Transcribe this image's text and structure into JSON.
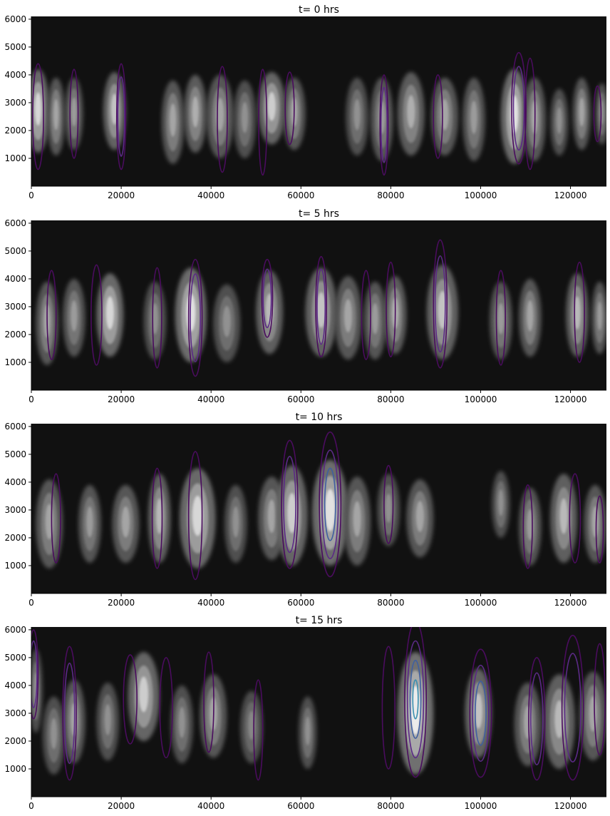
{
  "chart_data": [
    {
      "type": "heatmap",
      "title": "t=  0 hrs",
      "xlim": [
        0,
        128000
      ],
      "ylim": [
        0,
        6100
      ],
      "xticks": [
        0,
        20000,
        40000,
        60000,
        80000,
        100000,
        120000
      ],
      "yticks": [
        1000,
        2000,
        3000,
        4000,
        5000,
        6000
      ],
      "xtick_labels": [
        "0",
        "20000",
        "40000",
        "60000",
        "80000",
        "100000",
        "120000"
      ],
      "ytick_labels": [
        "1000",
        "2000",
        "3000",
        "4000",
        "5000",
        "6000"
      ],
      "background": "#111111",
      "clusters": [
        {
          "x": 1500,
          "y": 2700,
          "w": 2500,
          "h": 1500,
          "i": 0.85
        },
        {
          "x": 5500,
          "y": 2500,
          "w": 2000,
          "h": 1400,
          "i": 0.6
        },
        {
          "x": 9500,
          "y": 2600,
          "w": 2000,
          "h": 1300,
          "i": 0.55
        },
        {
          "x": 18500,
          "y": 2700,
          "w": 2500,
          "h": 1400,
          "i": 0.75
        },
        {
          "x": 31500,
          "y": 2300,
          "w": 2500,
          "h": 1500,
          "i": 0.6
        },
        {
          "x": 36500,
          "y": 2600,
          "w": 2500,
          "h": 1400,
          "i": 0.65
        },
        {
          "x": 42000,
          "y": 2500,
          "w": 3000,
          "h": 1500,
          "i": 0.6
        },
        {
          "x": 47500,
          "y": 2400,
          "w": 2500,
          "h": 1400,
          "i": 0.5
        },
        {
          "x": 53500,
          "y": 2800,
          "w": 3000,
          "h": 1300,
          "i": 0.8
        },
        {
          "x": 58500,
          "y": 2600,
          "w": 2500,
          "h": 1300,
          "i": 0.6
        },
        {
          "x": 72500,
          "y": 2500,
          "w": 2500,
          "h": 1400,
          "i": 0.5
        },
        {
          "x": 78000,
          "y": 2400,
          "w": 2500,
          "h": 1500,
          "i": 0.55
        },
        {
          "x": 84500,
          "y": 2600,
          "w": 3000,
          "h": 1500,
          "i": 0.65
        },
        {
          "x": 92000,
          "y": 2500,
          "w": 3000,
          "h": 1400,
          "i": 0.6
        },
        {
          "x": 98500,
          "y": 2400,
          "w": 2500,
          "h": 1500,
          "i": 0.55
        },
        {
          "x": 107500,
          "y": 2500,
          "w": 3000,
          "h": 1700,
          "i": 0.9
        },
        {
          "x": 112000,
          "y": 2400,
          "w": 2500,
          "h": 1500,
          "i": 0.6
        },
        {
          "x": 117500,
          "y": 2300,
          "w": 2000,
          "h": 1200,
          "i": 0.5
        },
        {
          "x": 122500,
          "y": 2600,
          "w": 2000,
          "h": 1300,
          "i": 0.6
        },
        {
          "x": 127000,
          "y": 2600,
          "w": 1500,
          "h": 1100,
          "i": 0.5
        }
      ],
      "contours": [
        {
          "x": 1500,
          "y": 2500,
          "w": 1200,
          "h": 1900,
          "level": 1
        },
        {
          "x": 9500,
          "y": 2600,
          "w": 900,
          "h": 1600,
          "level": 1
        },
        {
          "x": 20000,
          "y": 2500,
          "w": 1000,
          "h": 1900,
          "level": 2
        },
        {
          "x": 42500,
          "y": 2400,
          "w": 1100,
          "h": 1900,
          "level": 1
        },
        {
          "x": 51500,
          "y": 2300,
          "w": 900,
          "h": 1900,
          "level": 1
        },
        {
          "x": 57500,
          "y": 2800,
          "w": 1000,
          "h": 1300,
          "level": 1
        },
        {
          "x": 78500,
          "y": 2200,
          "w": 900,
          "h": 1800,
          "level": 2
        },
        {
          "x": 90500,
          "y": 2500,
          "w": 1000,
          "h": 1500,
          "level": 1
        },
        {
          "x": 108500,
          "y": 2800,
          "w": 1600,
          "h": 2000,
          "level": 2
        },
        {
          "x": 111000,
          "y": 2600,
          "w": 1100,
          "h": 2000,
          "level": 1
        },
        {
          "x": 126000,
          "y": 2600,
          "w": 800,
          "h": 1000,
          "level": 1
        }
      ]
    },
    {
      "type": "heatmap",
      "title": "t=  5 hrs",
      "xlim": [
        0,
        128000
      ],
      "ylim": [
        0,
        6100
      ],
      "xticks": [
        0,
        20000,
        40000,
        60000,
        80000,
        100000,
        120000
      ],
      "yticks": [
        1000,
        2000,
        3000,
        4000,
        5000,
        6000
      ],
      "xtick_labels": [
        "0",
        "20000",
        "40000",
        "60000",
        "80000",
        "100000",
        "120000"
      ],
      "ytick_labels": [
        "1000",
        "2000",
        "3000",
        "4000",
        "5000",
        "6000"
      ],
      "background": "#111111",
      "clusters": [
        {
          "x": 3500,
          "y": 2400,
          "w": 2500,
          "h": 1500,
          "i": 0.6
        },
        {
          "x": 9500,
          "y": 2600,
          "w": 2500,
          "h": 1400,
          "i": 0.55
        },
        {
          "x": 17500,
          "y": 2700,
          "w": 3000,
          "h": 1500,
          "i": 0.85
        },
        {
          "x": 27500,
          "y": 2500,
          "w": 2500,
          "h": 1400,
          "i": 0.5
        },
        {
          "x": 35500,
          "y": 2700,
          "w": 3500,
          "h": 1700,
          "i": 0.9
        },
        {
          "x": 43500,
          "y": 2400,
          "w": 3000,
          "h": 1400,
          "i": 0.5
        },
        {
          "x": 53000,
          "y": 2800,
          "w": 3000,
          "h": 1500,
          "i": 0.7
        },
        {
          "x": 64500,
          "y": 2800,
          "w": 3500,
          "h": 1600,
          "i": 0.75
        },
        {
          "x": 70500,
          "y": 2600,
          "w": 3000,
          "h": 1500,
          "i": 0.6
        },
        {
          "x": 76500,
          "y": 2500,
          "w": 2500,
          "h": 1400,
          "i": 0.55
        },
        {
          "x": 81000,
          "y": 2700,
          "w": 2500,
          "h": 1400,
          "i": 0.65
        },
        {
          "x": 91500,
          "y": 2800,
          "w": 3500,
          "h": 1700,
          "i": 0.75
        },
        {
          "x": 104500,
          "y": 2500,
          "w": 2500,
          "h": 1400,
          "i": 0.55
        },
        {
          "x": 111000,
          "y": 2600,
          "w": 2500,
          "h": 1400,
          "i": 0.6
        },
        {
          "x": 121500,
          "y": 2700,
          "w": 2500,
          "h": 1500,
          "i": 0.7
        },
        {
          "x": 126500,
          "y": 2600,
          "w": 1800,
          "h": 1300,
          "i": 0.55
        }
      ],
      "contours": [
        {
          "x": 4500,
          "y": 2700,
          "w": 1000,
          "h": 1600,
          "level": 1
        },
        {
          "x": 14500,
          "y": 2700,
          "w": 1200,
          "h": 1800,
          "level": 1
        },
        {
          "x": 28000,
          "y": 2600,
          "w": 1000,
          "h": 1800,
          "level": 1
        },
        {
          "x": 36500,
          "y": 2600,
          "w": 1500,
          "h": 2100,
          "level": 2
        },
        {
          "x": 52500,
          "y": 3300,
          "w": 1200,
          "h": 1400,
          "level": 2
        },
        {
          "x": 64500,
          "y": 3000,
          "w": 1200,
          "h": 1800,
          "level": 2
        },
        {
          "x": 74500,
          "y": 2700,
          "w": 1000,
          "h": 1600,
          "level": 1
        },
        {
          "x": 80000,
          "y": 2900,
          "w": 1000,
          "h": 1700,
          "level": 1
        },
        {
          "x": 91000,
          "y": 3100,
          "w": 1500,
          "h": 2300,
          "level": 2
        },
        {
          "x": 104500,
          "y": 2600,
          "w": 1000,
          "h": 1700,
          "level": 1
        },
        {
          "x": 122000,
          "y": 2800,
          "w": 1100,
          "h": 1800,
          "level": 1
        }
      ]
    },
    {
      "type": "heatmap",
      "title": "t= 10 hrs",
      "xlim": [
        0,
        128000
      ],
      "ylim": [
        0,
        6100
      ],
      "xticks": [
        0,
        20000,
        40000,
        60000,
        80000,
        100000,
        120000
      ],
      "yticks": [
        1000,
        2000,
        3000,
        4000,
        5000,
        6000
      ],
      "xtick_labels": [
        "0",
        "20000",
        "40000",
        "60000",
        "80000",
        "100000",
        "120000"
      ],
      "ytick_labels": [
        "1000",
        "2000",
        "3000",
        "4000",
        "5000",
        "6000"
      ],
      "background": "#111111",
      "clusters": [
        {
          "x": 4000,
          "y": 2500,
          "w": 3000,
          "h": 1600,
          "i": 0.6
        },
        {
          "x": 13000,
          "y": 2500,
          "w": 2500,
          "h": 1400,
          "i": 0.55
        },
        {
          "x": 21000,
          "y": 2500,
          "w": 3000,
          "h": 1400,
          "i": 0.6
        },
        {
          "x": 28500,
          "y": 2700,
          "w": 2500,
          "h": 1600,
          "i": 0.7
        },
        {
          "x": 37000,
          "y": 2700,
          "w": 4000,
          "h": 1800,
          "i": 0.85
        },
        {
          "x": 45500,
          "y": 2500,
          "w": 2500,
          "h": 1400,
          "i": 0.5
        },
        {
          "x": 53500,
          "y": 2700,
          "w": 3000,
          "h": 1500,
          "i": 0.6
        },
        {
          "x": 58000,
          "y": 2800,
          "w": 3500,
          "h": 1800,
          "i": 0.8
        },
        {
          "x": 66500,
          "y": 2900,
          "w": 4000,
          "h": 1900,
          "i": 0.9
        },
        {
          "x": 72500,
          "y": 2600,
          "w": 3000,
          "h": 1600,
          "i": 0.6
        },
        {
          "x": 79500,
          "y": 3000,
          "w": 2500,
          "h": 1300,
          "i": 0.5
        },
        {
          "x": 86500,
          "y": 2700,
          "w": 3000,
          "h": 1400,
          "i": 0.6
        },
        {
          "x": 104500,
          "y": 3200,
          "w": 2000,
          "h": 1200,
          "i": 0.5
        },
        {
          "x": 111000,
          "y": 2400,
          "w": 2500,
          "h": 1400,
          "i": 0.55
        },
        {
          "x": 118500,
          "y": 2700,
          "w": 3000,
          "h": 1600,
          "i": 0.7
        },
        {
          "x": 125500,
          "y": 2500,
          "w": 2500,
          "h": 1400,
          "i": 0.6
        }
      ],
      "contours": [
        {
          "x": 5500,
          "y": 2700,
          "w": 1000,
          "h": 1600,
          "level": 1
        },
        {
          "x": 28000,
          "y": 2700,
          "w": 1100,
          "h": 1800,
          "level": 1
        },
        {
          "x": 36500,
          "y": 2800,
          "w": 1500,
          "h": 2300,
          "level": 1
        },
        {
          "x": 57500,
          "y": 3200,
          "w": 1800,
          "h": 2300,
          "level": 2
        },
        {
          "x": 66500,
          "y": 3200,
          "w": 2400,
          "h": 2600,
          "level": 3
        },
        {
          "x": 79500,
          "y": 3200,
          "w": 1000,
          "h": 1400,
          "level": 1
        },
        {
          "x": 110500,
          "y": 2400,
          "w": 1000,
          "h": 1500,
          "level": 1
        },
        {
          "x": 121000,
          "y": 2700,
          "w": 1200,
          "h": 1600,
          "level": 1
        },
        {
          "x": 126500,
          "y": 2300,
          "w": 800,
          "h": 1200,
          "level": 1
        }
      ]
    },
    {
      "type": "heatmap",
      "title": "t= 15 hrs",
      "xlim": [
        0,
        128000
      ],
      "ylim": [
        0,
        6100
      ],
      "xticks": [
        0,
        20000,
        40000,
        60000,
        80000,
        100000,
        120000
      ],
      "yticks": [
        1000,
        2000,
        3000,
        4000,
        5000,
        6000
      ],
      "xtick_labels": [
        "0",
        "20000",
        "40000",
        "60000",
        "80000",
        "100000",
        "120000"
      ],
      "ytick_labels": [
        "1000",
        "2000",
        "3000",
        "4000",
        "5000",
        "6000"
      ],
      "background": "#111111",
      "clusters": [
        {
          "x": 1000,
          "y": 3800,
          "w": 1500,
          "h": 1500,
          "i": 0.5
        },
        {
          "x": 5000,
          "y": 2200,
          "w": 2500,
          "h": 1400,
          "i": 0.5
        },
        {
          "x": 9500,
          "y": 2700,
          "w": 2500,
          "h": 1500,
          "i": 0.6
        },
        {
          "x": 17000,
          "y": 2700,
          "w": 2500,
          "h": 1400,
          "i": 0.5
        },
        {
          "x": 25000,
          "y": 3600,
          "w": 3500,
          "h": 1600,
          "i": 0.8
        },
        {
          "x": 33500,
          "y": 2600,
          "w": 2500,
          "h": 1400,
          "i": 0.5
        },
        {
          "x": 40500,
          "y": 2900,
          "w": 3000,
          "h": 1500,
          "i": 0.6
        },
        {
          "x": 49000,
          "y": 2500,
          "w": 2500,
          "h": 1300,
          "i": 0.45
        },
        {
          "x": 61500,
          "y": 2300,
          "w": 2000,
          "h": 1300,
          "i": 0.5
        },
        {
          "x": 85500,
          "y": 3000,
          "w": 4000,
          "h": 2200,
          "i": 0.95
        },
        {
          "x": 99500,
          "y": 3000,
          "w": 3000,
          "h": 1600,
          "i": 0.75
        },
        {
          "x": 110500,
          "y": 2600,
          "w": 3000,
          "h": 1500,
          "i": 0.6
        },
        {
          "x": 117500,
          "y": 2700,
          "w": 3500,
          "h": 1700,
          "i": 0.7
        },
        {
          "x": 125000,
          "y": 2900,
          "w": 3000,
          "h": 1600,
          "i": 0.6
        }
      ],
      "contours": [
        {
          "x": 500,
          "y": 4400,
          "w": 1000,
          "h": 1600,
          "level": 2
        },
        {
          "x": 8500,
          "y": 3000,
          "w": 1500,
          "h": 2400,
          "level": 2
        },
        {
          "x": 22000,
          "y": 3500,
          "w": 1500,
          "h": 1600,
          "level": 1
        },
        {
          "x": 30000,
          "y": 3200,
          "w": 1400,
          "h": 1800,
          "level": 1
        },
        {
          "x": 39500,
          "y": 3400,
          "w": 1100,
          "h": 1800,
          "level": 1
        },
        {
          "x": 50500,
          "y": 2400,
          "w": 1000,
          "h": 1800,
          "level": 1
        },
        {
          "x": 79500,
          "y": 3200,
          "w": 1400,
          "h": 2200,
          "level": 1
        },
        {
          "x": 85500,
          "y": 3500,
          "w": 2400,
          "h": 2800,
          "level": 4
        },
        {
          "x": 100000,
          "y": 3000,
          "w": 2400,
          "h": 2300,
          "level": 3
        },
        {
          "x": 112500,
          "y": 2800,
          "w": 1800,
          "h": 2200,
          "level": 2
        },
        {
          "x": 120500,
          "y": 3200,
          "w": 2400,
          "h": 2600,
          "level": 2
        },
        {
          "x": 126500,
          "y": 3500,
          "w": 1200,
          "h": 2000,
          "level": 1
        }
      ]
    }
  ]
}
